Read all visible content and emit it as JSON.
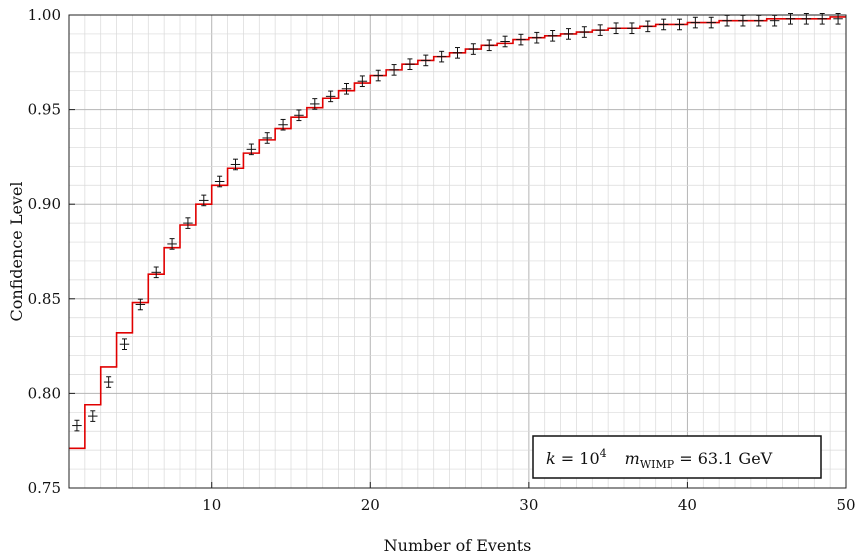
{
  "chart_data": {
    "type": "line",
    "title": "",
    "xlabel": "Number of Events",
    "ylabel": "Confidence Level",
    "xlim": [
      1,
      50
    ],
    "ylim": [
      0.75,
      1.0
    ],
    "x_ticks": [
      10,
      20,
      30,
      40,
      50
    ],
    "x_tick_labels": [
      "10",
      "20",
      "30",
      "40",
      "50"
    ],
    "y_ticks": [
      0.75,
      0.8,
      0.85,
      0.9,
      0.95,
      1.0
    ],
    "y_tick_labels": [
      "0.75",
      "0.80",
      "0.85",
      "0.90",
      "0.95",
      "1.00"
    ],
    "grid": true,
    "legend_placement": "bottom-right",
    "annotation": {
      "k_text": "k",
      "eq1": " = 10",
      "exp": "4",
      "m_text": "m",
      "m_sub": "WIMP",
      "eq2": " = 63.1 GeV"
    },
    "series": [
      {
        "style": "step",
        "color": "#e00000",
        "x": [
          1,
          2,
          3,
          4,
          5,
          6,
          7,
          8,
          9,
          10,
          11,
          12,
          13,
          14,
          15,
          16,
          17,
          18,
          19,
          20,
          21,
          22,
          23,
          24,
          25,
          26,
          27,
          28,
          29,
          30,
          31,
          32,
          33,
          34,
          35,
          36,
          37,
          38,
          39,
          40,
          41,
          42,
          43,
          44,
          45,
          46,
          47,
          48,
          49,
          50
        ],
        "y": [
          0.771,
          0.794,
          0.814,
          0.832,
          0.848,
          0.863,
          0.877,
          0.889,
          0.9,
          0.91,
          0.919,
          0.927,
          0.934,
          0.94,
          0.946,
          0.951,
          0.956,
          0.96,
          0.964,
          0.968,
          0.971,
          0.974,
          0.976,
          0.978,
          0.98,
          0.982,
          0.984,
          0.985,
          0.987,
          0.988,
          0.989,
          0.99,
          0.991,
          0.992,
          0.993,
          0.993,
          0.994,
          0.995,
          0.995,
          0.996,
          0.996,
          0.997,
          0.997,
          0.997,
          0.998,
          0.998,
          0.998,
          0.998,
          0.999,
          0.999
        ]
      },
      {
        "style": "errorbar",
        "color": "#111111",
        "x": [
          1,
          2,
          3,
          4,
          5,
          6,
          7,
          8,
          9,
          10,
          11,
          12,
          13,
          14,
          15,
          16,
          17,
          18,
          19,
          20,
          21,
          22,
          23,
          24,
          25,
          26,
          27,
          28,
          29,
          30,
          31,
          32,
          33,
          34,
          35,
          36,
          37,
          38,
          39,
          40,
          41,
          42,
          43,
          44,
          45,
          46,
          47,
          48,
          49
        ],
        "y": [
          0.783,
          0.788,
          0.806,
          0.826,
          0.847,
          0.864,
          0.879,
          0.89,
          0.902,
          0.912,
          0.921,
          0.929,
          0.935,
          0.942,
          0.947,
          0.953,
          0.957,
          0.961,
          0.965,
          0.968,
          0.971,
          0.974,
          0.976,
          0.978,
          0.98,
          0.982,
          0.984,
          0.986,
          0.987,
          0.988,
          0.989,
          0.99,
          0.991,
          0.992,
          0.993,
          0.993,
          0.994,
          0.995,
          0.995,
          0.996,
          0.996,
          0.997,
          0.997,
          0.997,
          0.997,
          0.998,
          0.998,
          0.998,
          0.998
        ],
        "yerr": 0.0028,
        "xerr": 0.5
      }
    ]
  }
}
